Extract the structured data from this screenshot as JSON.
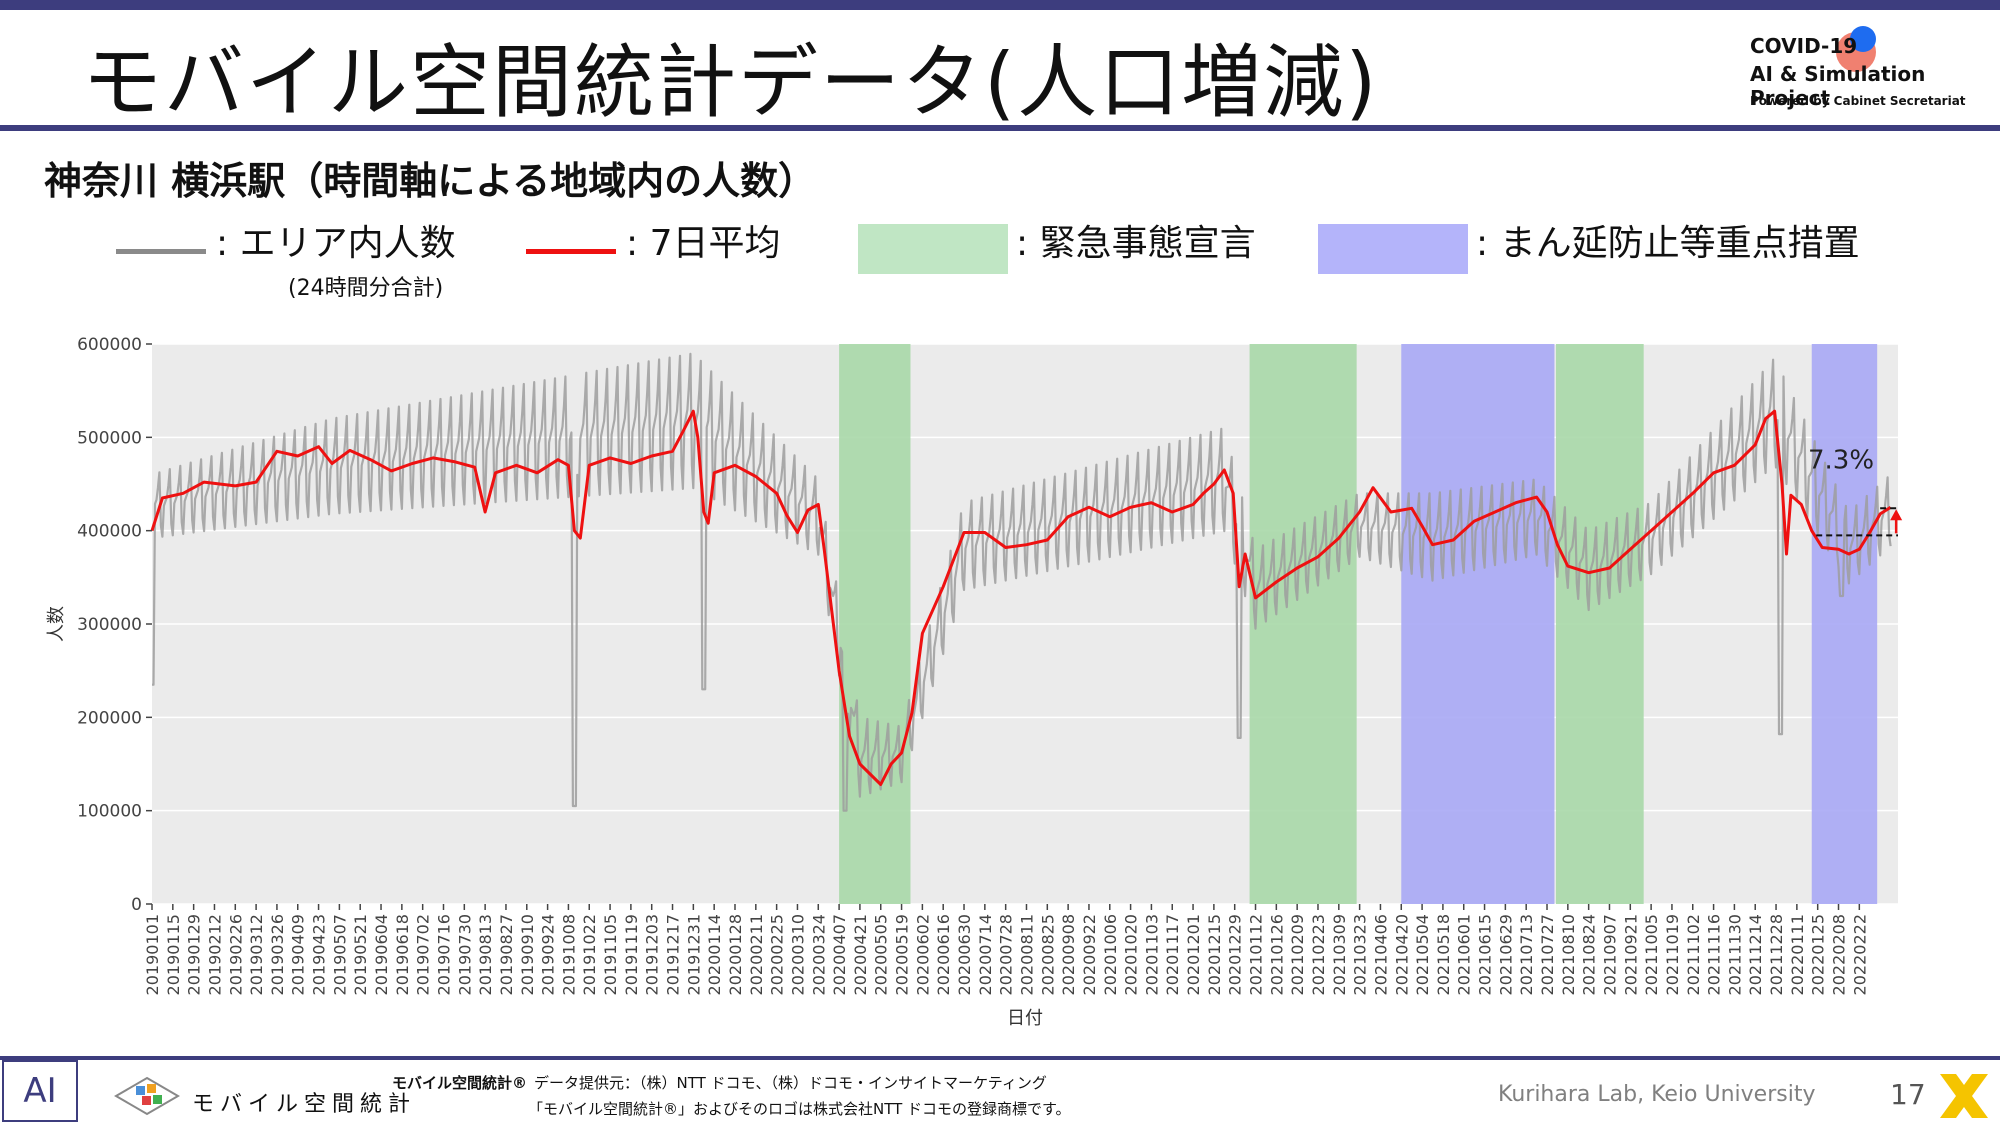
{
  "slide": {
    "title": "モバイル空間統計データ(人口増減)",
    "subtitle": "神奈川 横浜駅（時間軸による地域内の人数）",
    "logo": {
      "line1": "COVID-19",
      "line2": "AI & Simulation Project",
      "line3": "Powered by Cabinet Secretariat"
    },
    "legend": {
      "gray": ": エリア内人数",
      "gray_sub": "(24時間分合計)",
      "red": ": 7日平均",
      "green": ": 緊急事態宣言",
      "blue": ": まん延防止等重点措置"
    },
    "footer": {
      "ai_mark": "AI",
      "brand": "モバイル空間統計",
      "brand_mark": "モバイル空間統計®",
      "provider": "データ提供元：（株）NTT ドコモ、（株）ドコモ・インサイトマーケティング",
      "trademark": "「モバイル空間統計®」およびそのロゴは株式会社NTT ドコモの登録商標です。",
      "lab": "Kurihara Lab, Keio University",
      "page": "17"
    }
  },
  "colors": {
    "accent": "#3d3d7e",
    "daily": "#9e9e9e",
    "avg": "#ee1111",
    "emergency": "#a8d8a8",
    "quasi": "#a9a9f5",
    "plot_bg": "#ebebeb"
  },
  "chart_data": {
    "type": "line",
    "xlabel": "日付",
    "ylabel": "人数",
    "ylim": [
      0,
      600000
    ],
    "yticks": [
      0,
      100000,
      200000,
      300000,
      400000,
      500000,
      600000
    ],
    "x_range": [
      "2019-01-01",
      "2022-03-20"
    ],
    "xtick_labels": [
      "20190101",
      "20190115",
      "20190129",
      "20190212",
      "20190226",
      "20190312",
      "20190326",
      "20190409",
      "20190423",
      "20190507",
      "20190521",
      "20190604",
      "20190618",
      "20190702",
      "20190716",
      "20190730",
      "20190813",
      "20190827",
      "20190910",
      "20190924",
      "20191008",
      "20191022",
      "20191105",
      "20191119",
      "20191203",
      "20191217",
      "20191231",
      "20200114",
      "20200128",
      "20200211",
      "20200225",
      "20200310",
      "20200324",
      "20200407",
      "20200421",
      "20200505",
      "20200519",
      "20200602",
      "20200616",
      "20200630",
      "20200714",
      "20200728",
      "20200811",
      "20200825",
      "20200908",
      "20200922",
      "20201006",
      "20201020",
      "20201103",
      "20201117",
      "20201201",
      "20201215",
      "20201229",
      "20210112",
      "20210126",
      "20210209",
      "20210223",
      "20210309",
      "20210323",
      "20210406",
      "20210420",
      "20210504",
      "20210518",
      "20210601",
      "20210615",
      "20210629",
      "20210713",
      "20210727",
      "20210810",
      "20210824",
      "20210907",
      "20210921",
      "20211005",
      "20211019",
      "20211102",
      "20211116",
      "20211130",
      "20211214",
      "20211228",
      "20220111",
      "20220125",
      "20220208",
      "20220222"
    ],
    "shaded_periods": [
      {
        "type": "emergency",
        "start": "2020-04-07",
        "end": "2020-05-25"
      },
      {
        "type": "emergency",
        "start": "2021-01-08",
        "end": "2021-03-21"
      },
      {
        "type": "quasi",
        "start": "2021-04-20",
        "end": "2021-08-01"
      },
      {
        "type": "emergency",
        "start": "2021-08-02",
        "end": "2021-09-30"
      },
      {
        "type": "quasi",
        "start": "2022-01-21",
        "end": "2022-03-06"
      }
    ],
    "series": [
      {
        "name": ": 7日平均",
        "points": [
          [
            "2019-01-01",
            400000
          ],
          [
            "2019-01-08",
            435000
          ],
          [
            "2019-01-22",
            440000
          ],
          [
            "2019-02-05",
            452000
          ],
          [
            "2019-02-26",
            448000
          ],
          [
            "2019-03-12",
            452000
          ],
          [
            "2019-03-26",
            485000
          ],
          [
            "2019-04-09",
            480000
          ],
          [
            "2019-04-23",
            490000
          ],
          [
            "2019-05-02",
            472000
          ],
          [
            "2019-05-14",
            486000
          ],
          [
            "2019-05-28",
            476000
          ],
          [
            "2019-06-11",
            464000
          ],
          [
            "2019-06-25",
            472000
          ],
          [
            "2019-07-09",
            478000
          ],
          [
            "2019-07-23",
            474000
          ],
          [
            "2019-08-06",
            468000
          ],
          [
            "2019-08-13",
            420000
          ],
          [
            "2019-08-20",
            462000
          ],
          [
            "2019-09-03",
            470000
          ],
          [
            "2019-09-17",
            462000
          ],
          [
            "2019-10-01",
            476000
          ],
          [
            "2019-10-08",
            470000
          ],
          [
            "2019-10-12",
            400000
          ],
          [
            "2019-10-16",
            392000
          ],
          [
            "2019-10-22",
            470000
          ],
          [
            "2019-11-05",
            478000
          ],
          [
            "2019-11-19",
            472000
          ],
          [
            "2019-12-03",
            480000
          ],
          [
            "2019-12-17",
            485000
          ],
          [
            "2019-12-24",
            506000
          ],
          [
            "2019-12-31",
            528000
          ],
          [
            "2020-01-03",
            500000
          ],
          [
            "2020-01-07",
            420000
          ],
          [
            "2020-01-10",
            408000
          ],
          [
            "2020-01-14",
            462000
          ],
          [
            "2020-01-28",
            470000
          ],
          [
            "2020-02-11",
            458000
          ],
          [
            "2020-02-25",
            440000
          ],
          [
            "2020-03-03",
            416000
          ],
          [
            "2020-03-10",
            398000
          ],
          [
            "2020-03-17",
            422000
          ],
          [
            "2020-03-24",
            428000
          ],
          [
            "2020-03-28",
            380000
          ],
          [
            "2020-04-07",
            250000
          ],
          [
            "2020-04-14",
            180000
          ],
          [
            "2020-04-21",
            150000
          ],
          [
            "2020-05-05",
            128000
          ],
          [
            "2020-05-12",
            150000
          ],
          [
            "2020-05-19",
            162000
          ],
          [
            "2020-05-26",
            205000
          ],
          [
            "2020-06-02",
            290000
          ],
          [
            "2020-06-16",
            340000
          ],
          [
            "2020-06-30",
            398000
          ],
          [
            "2020-07-14",
            398000
          ],
          [
            "2020-07-28",
            382000
          ],
          [
            "2020-08-11",
            385000
          ],
          [
            "2020-08-25",
            390000
          ],
          [
            "2020-09-08",
            415000
          ],
          [
            "2020-09-22",
            425000
          ],
          [
            "2020-10-06",
            415000
          ],
          [
            "2020-10-20",
            425000
          ],
          [
            "2020-11-03",
            430000
          ],
          [
            "2020-11-17",
            420000
          ],
          [
            "2020-12-01",
            428000
          ],
          [
            "2020-12-08",
            440000
          ],
          [
            "2020-12-15",
            450000
          ],
          [
            "2020-12-22",
            465000
          ],
          [
            "2020-12-28",
            440000
          ],
          [
            "2021-01-01",
            340000
          ],
          [
            "2021-01-05",
            375000
          ],
          [
            "2021-01-12",
            328000
          ],
          [
            "2021-01-26",
            345000
          ],
          [
            "2021-02-09",
            360000
          ],
          [
            "2021-02-23",
            372000
          ],
          [
            "2021-03-09",
            392000
          ],
          [
            "2021-03-23",
            420000
          ],
          [
            "2021-04-01",
            446000
          ],
          [
            "2021-04-13",
            420000
          ],
          [
            "2021-04-27",
            424000
          ],
          [
            "2021-05-04",
            405000
          ],
          [
            "2021-05-11",
            385000
          ],
          [
            "2021-05-25",
            390000
          ],
          [
            "2021-06-08",
            410000
          ],
          [
            "2021-06-22",
            420000
          ],
          [
            "2021-07-06",
            430000
          ],
          [
            "2021-07-20",
            436000
          ],
          [
            "2021-07-27",
            420000
          ],
          [
            "2021-08-03",
            385000
          ],
          [
            "2021-08-10",
            362000
          ],
          [
            "2021-08-24",
            355000
          ],
          [
            "2021-09-07",
            360000
          ],
          [
            "2021-09-21",
            380000
          ],
          [
            "2021-10-05",
            400000
          ],
          [
            "2021-10-19",
            420000
          ],
          [
            "2021-11-02",
            440000
          ],
          [
            "2021-11-16",
            462000
          ],
          [
            "2021-11-30",
            470000
          ],
          [
            "2021-12-14",
            492000
          ],
          [
            "2021-12-21",
            520000
          ],
          [
            "2021-12-27",
            528000
          ],
          [
            "2022-01-01",
            450000
          ],
          [
            "2022-01-04",
            375000
          ],
          [
            "2022-01-07",
            438000
          ],
          [
            "2022-01-14",
            428000
          ],
          [
            "2022-01-21",
            400000
          ],
          [
            "2022-01-28",
            382000
          ],
          [
            "2022-02-08",
            380000
          ],
          [
            "2022-02-15",
            375000
          ],
          [
            "2022-02-22",
            380000
          ],
          [
            "2022-03-01",
            398000
          ],
          [
            "2022-03-08",
            418000
          ],
          [
            "2022-03-15",
            425000
          ]
        ]
      }
    ],
    "daily_band": {
      "lower": [
        [
          "2019-01-01",
          380000
        ],
        [
          "2019-05-02",
          400000
        ],
        [
          "2019-12-31",
          420000
        ],
        [
          "2020-03-24",
          360000
        ],
        [
          "2020-04-21",
          100000
        ],
        [
          "2020-05-19",
          120000
        ],
        [
          "2020-06-30",
          320000
        ],
        [
          "2020-12-22",
          380000
        ],
        [
          "2021-01-12",
          280000
        ],
        [
          "2021-03-23",
          360000
        ],
        [
          "2021-05-11",
          330000
        ],
        [
          "2021-07-20",
          360000
        ],
        [
          "2021-08-24",
          300000
        ],
        [
          "2021-10-05",
          340000
        ],
        [
          "2021-12-27",
          450000
        ],
        [
          "2022-02-15",
          330000
        ],
        [
          "2022-03-15",
          370000
        ]
      ],
      "upper": [
        [
          "2019-01-01",
          460000
        ],
        [
          "2019-05-02",
          520000
        ],
        [
          "2019-12-31",
          590000
        ],
        [
          "2020-03-24",
          455000
        ],
        [
          "2020-04-21",
          200000
        ],
        [
          "2020-05-19",
          190000
        ],
        [
          "2020-06-30",
          430000
        ],
        [
          "2020-12-22",
          510000
        ],
        [
          "2021-01-12",
          380000
        ],
        [
          "2021-03-23",
          440000
        ],
        [
          "2021-05-11",
          440000
        ],
        [
          "2021-07-20",
          455000
        ],
        [
          "2021-08-24",
          400000
        ],
        [
          "2021-10-05",
          430000
        ],
        [
          "2021-12-27",
          585000
        ],
        [
          "2022-02-15",
          420000
        ],
        [
          "2022-03-15",
          460000
        ]
      ],
      "dips": [
        [
          "2019-01-01",
          235000
        ],
        [
          "2019-10-12",
          105000
        ],
        [
          "2020-01-07",
          230000
        ],
        [
          "2020-04-11",
          100000
        ],
        [
          "2021-01-01",
          178000
        ],
        [
          "2021-12-31",
          182000
        ],
        [
          "2022-02-10",
          330000
        ]
      ]
    },
    "annotation": {
      "text": "7.3%",
      "baseline": 395000,
      "latest": 424000,
      "baseline_x": [
        "2022-01-24",
        "2022-03-20"
      ],
      "latest_x": [
        "2022-03-08",
        "2022-03-20"
      ]
    }
  }
}
